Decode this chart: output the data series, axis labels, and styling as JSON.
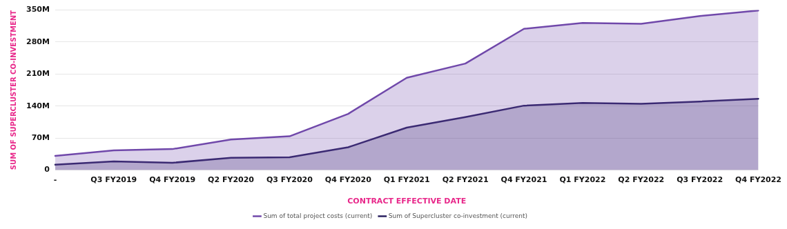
{
  "chart_data": {
    "type": "area",
    "xlabel": "CONTRACT EFFECTIVE DATE",
    "ylabel": "SUM OF SUPERCLUSTER CO-INVESTMENT",
    "categories": [
      "-",
      "Q3 FY2019",
      "Q4 FY2019",
      "Q2 FY2020",
      "Q3 FY2020",
      "Q4 FY2020",
      "Q1 FY2021",
      "Q2 FY2021",
      "Q4 FY2021",
      "Q1 FY2022",
      "Q2 FY2022",
      "Q3 FY2022",
      "Q4 FY2022"
    ],
    "series": [
      {
        "name": "Sum of Supercluster co-investment (current)",
        "color": "#2a2160",
        "values": [
          12,
          19,
          16,
          27,
          28,
          50,
          93,
          116,
          141,
          147,
          145,
          150,
          156
        ]
      },
      {
        "name": "Sum of total project costs (current)",
        "color": "#7048aa",
        "values": [
          31,
          43,
          46,
          67,
          74,
          123,
          202,
          233,
          309,
          322,
          320,
          337,
          349
        ]
      }
    ],
    "ylim": [
      0,
      350
    ],
    "yticks": [
      {
        "value": 0,
        "label": "0"
      },
      {
        "value": 70,
        "label": "70M"
      },
      {
        "value": 140,
        "label": "140M"
      },
      {
        "value": 210,
        "label": "210M"
      },
      {
        "value": 280,
        "label": "280M"
      },
      {
        "value": 350,
        "label": "350M"
      }
    ],
    "grid": "y",
    "legend": "bottom",
    "marker": "none",
    "line_style": "solid"
  }
}
